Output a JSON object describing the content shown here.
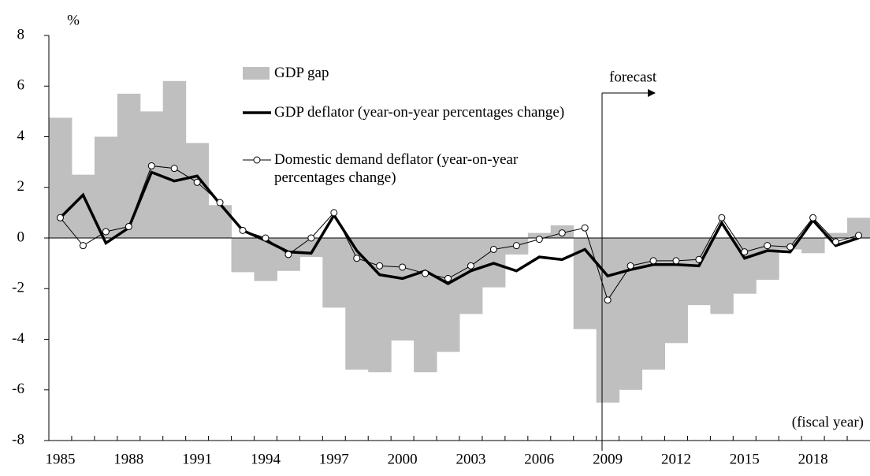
{
  "chart_data": {
    "type": "combo",
    "y_label": "%",
    "categories": [
      "1985",
      null,
      null,
      "1988",
      null,
      null,
      "1991",
      null,
      null,
      "1994",
      null,
      null,
      "1997",
      null,
      null,
      "2000",
      null,
      null,
      "2003",
      null,
      null,
      "2006",
      null,
      null,
      "2009",
      null,
      null,
      "2012",
      null,
      null,
      "2015",
      null,
      null,
      "2018",
      null,
      null
    ],
    "series": [
      {
        "name": "GDP gap",
        "type": "bar",
        "color": "#bfbfbf",
        "values": [
          4.75,
          2.5,
          4.0,
          5.7,
          5.0,
          6.2,
          3.75,
          1.3,
          -1.35,
          -1.7,
          -1.3,
          -0.75,
          -2.75,
          -5.2,
          -5.3,
          -4.05,
          -5.3,
          -4.5,
          -3.0,
          -1.95,
          -0.65,
          0.2,
          0.5,
          -3.6,
          -6.5,
          -6.0,
          -5.2,
          -4.15,
          -2.65,
          -3.0,
          -2.2,
          -1.65,
          -0.45,
          -0.6,
          0.2,
          0.8
        ]
      },
      {
        "name": "GDP deflator (year-on-year percentages change)",
        "type": "line",
        "color": "#000000",
        "values": [
          0.8,
          1.7,
          -0.2,
          0.4,
          2.6,
          2.25,
          2.45,
          1.35,
          0.3,
          -0.1,
          -0.55,
          -0.6,
          0.9,
          -0.5,
          -1.45,
          -1.6,
          -1.3,
          -1.8,
          -1.3,
          -1.0,
          -1.3,
          -0.75,
          -0.85,
          -0.45,
          -1.5,
          -1.25,
          -1.05,
          -1.05,
          -1.1,
          0.6,
          -0.8,
          -0.5,
          -0.55,
          0.7,
          -0.3,
          0.0
        ]
      },
      {
        "name": "Domestic demand deflator (year-on-year percentages change)",
        "type": "line",
        "color": "#000000",
        "marker": "circle",
        "values": [
          0.8,
          -0.3,
          0.25,
          0.45,
          2.85,
          2.75,
          2.2,
          1.4,
          0.3,
          0.0,
          -0.65,
          0.0,
          1.0,
          -0.8,
          -1.1,
          -1.15,
          -1.4,
          -1.6,
          -1.1,
          -0.45,
          -0.3,
          -0.05,
          0.2,
          0.4,
          -2.45,
          -1.1,
          -0.9,
          -0.9,
          -0.85,
          0.8,
          -0.55,
          -0.3,
          -0.35,
          0.8,
          -0.15,
          0.1
        ]
      }
    ],
    "ylim": [
      -8,
      8
    ],
    "yticks": [
      -8,
      -6,
      -4,
      -2,
      0,
      2,
      4,
      6,
      8
    ],
    "annotations": [
      "forecast",
      "(fiscal year)"
    ]
  }
}
